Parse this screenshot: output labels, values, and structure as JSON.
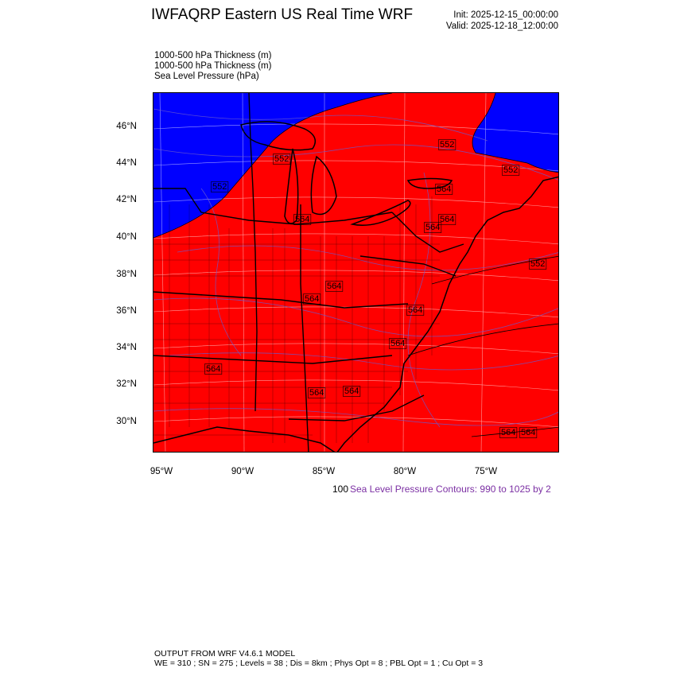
{
  "header": {
    "title": "IWFAQRP Eastern US Real Time WRF",
    "init": "Init: 2025-12-15_00:00:00",
    "valid": "Valid: 2025-12-18_12:00:00"
  },
  "fields": [
    "1000-500 hPa Thickness   (m)",
    "1000-500 hPa Thickness   (m)",
    "Sea Level Pressure   (hPa)"
  ],
  "map": {
    "lat_labels": [
      "46°N",
      "44°N",
      "42°N",
      "40°N",
      "38°N",
      "36°N",
      "34°N",
      "32°N",
      "30°N"
    ],
    "lon_labels": [
      "95°W",
      "90°W",
      "85°W",
      "80°W",
      "75°W"
    ],
    "contour_labels": [
      "552",
      "552",
      "552",
      "552",
      "564",
      "564",
      "564",
      "564",
      "564",
      "564",
      "564",
      "564",
      "564",
      "564",
      "564",
      "552",
      "564",
      "564"
    ],
    "colors": {
      "warm_fill": "#ff0000",
      "cold_fill": "#0000ff",
      "boundaries": "#000000",
      "slp_contours": "#6a5acd",
      "grid": "#ffffff"
    }
  },
  "legend": {
    "prefix": "100",
    "slp_text": "Sea Level Pressure Contours: 990 to 1025 by 2",
    "slp_color": "#7b2fa3"
  },
  "footer": {
    "line1": "OUTPUT FROM WRF V4.6.1 MODEL",
    "line2": "WE = 310 ; SN = 275 ; Levels = 38 ; Dis = 8km ; Phys Opt = 8 ; PBL Opt = 1 ; Cu Opt = 3"
  }
}
